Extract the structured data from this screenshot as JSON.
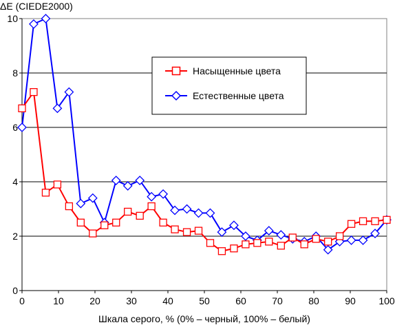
{
  "chart_data": {
    "type": "line",
    "title": "",
    "ylabel": "ΔE (CIEDE2000)",
    "xlabel": "Шкала серого, % (0% – черный, 100% – белый)",
    "xlim": [
      0,
      100
    ],
    "ylim": [
      0,
      10
    ],
    "xticks": [
      "0",
      "10",
      "20",
      "30",
      "40",
      "50",
      "60",
      "70",
      "80",
      "90",
      "100"
    ],
    "yticks": [
      "0",
      "2",
      "4",
      "6",
      "8",
      "10"
    ],
    "grid": "horizontal",
    "legend_position": "top-right",
    "series": [
      {
        "name": "Насыщенные цвета",
        "color": "#ff0000",
        "marker": "square",
        "x": [
          0,
          3.2,
          6.5,
          9.7,
          12.9,
          16.1,
          19.4,
          22.6,
          25.8,
          29,
          32.3,
          35.5,
          38.7,
          41.9,
          45.2,
          48.4,
          51.6,
          54.8,
          58.1,
          61.3,
          64.5,
          67.7,
          71,
          74.2,
          77.4,
          80.6,
          83.9,
          87.1,
          90.3,
          93.5,
          96.8,
          100
        ],
        "y": [
          6.7,
          7.3,
          3.6,
          3.9,
          3.1,
          2.5,
          2.1,
          2.4,
          2.5,
          2.9,
          2.75,
          3.1,
          2.5,
          2.25,
          2.15,
          2.2,
          1.75,
          1.45,
          1.55,
          1.7,
          1.75,
          1.8,
          1.65,
          1.95,
          1.7,
          1.9,
          1.8,
          2.0,
          2.45,
          2.55,
          2.55,
          2.6
        ]
      },
      {
        "name": "Естественные цвета",
        "color": "#0000ff",
        "marker": "diamond",
        "x": [
          0,
          3.2,
          6.5,
          9.7,
          12.9,
          16.1,
          19.4,
          22.6,
          25.8,
          29,
          32.3,
          35.5,
          38.7,
          41.9,
          45.2,
          48.4,
          51.6,
          54.8,
          58.1,
          61.3,
          64.5,
          67.7,
          71,
          74.2,
          77.4,
          80.6,
          83.9,
          87.1,
          90.3,
          93.5,
          96.8,
          100
        ],
        "y": [
          6.0,
          9.8,
          10.0,
          6.7,
          7.3,
          3.2,
          3.4,
          2.5,
          4.05,
          3.85,
          4.05,
          3.45,
          3.55,
          2.95,
          3.0,
          2.85,
          2.85,
          2.15,
          2.4,
          2.0,
          1.85,
          2.2,
          2.05,
          1.9,
          1.8,
          2.0,
          1.5,
          1.8,
          1.85,
          1.85,
          2.1,
          2.6
        ]
      }
    ]
  }
}
